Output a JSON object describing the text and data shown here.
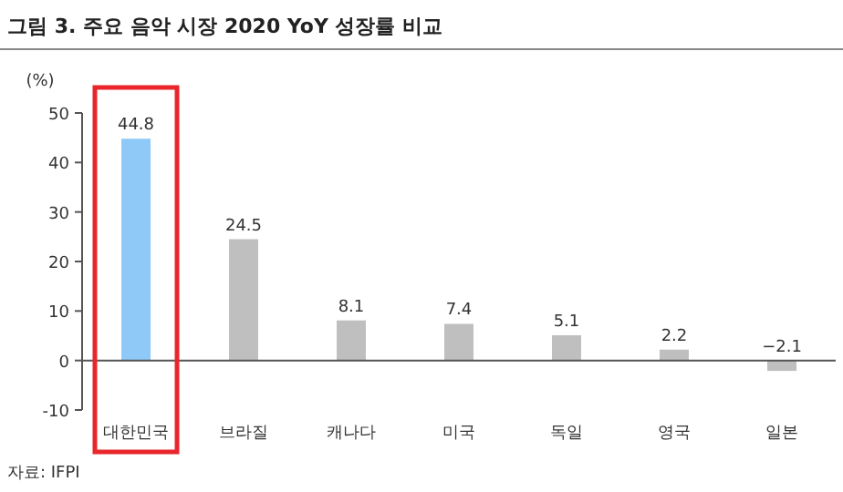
{
  "chart_data": {
    "type": "bar",
    "title": "그림 3. 주요 음악 시장 2020 YoY 성장률 비교",
    "ylabel": "(%)",
    "categories": [
      "대한민국",
      "브라질",
      "캐나다",
      "미국",
      "독일",
      "영국",
      "일본"
    ],
    "values": [
      44.8,
      24.5,
      8.1,
      7.4,
      5.1,
      2.2,
      -2.1
    ],
    "colors": [
      "#8ec9f7",
      "#bfbfbf",
      "#bfbfbf",
      "#bfbfbf",
      "#bfbfbf",
      "#bfbfbf",
      "#bfbfbf"
    ],
    "ylim": [
      -10,
      50
    ],
    "yticks": [
      -10,
      0,
      10,
      20,
      30,
      40,
      50
    ],
    "data_labels": true,
    "annotations": [
      "자료: IFPI"
    ]
  }
}
